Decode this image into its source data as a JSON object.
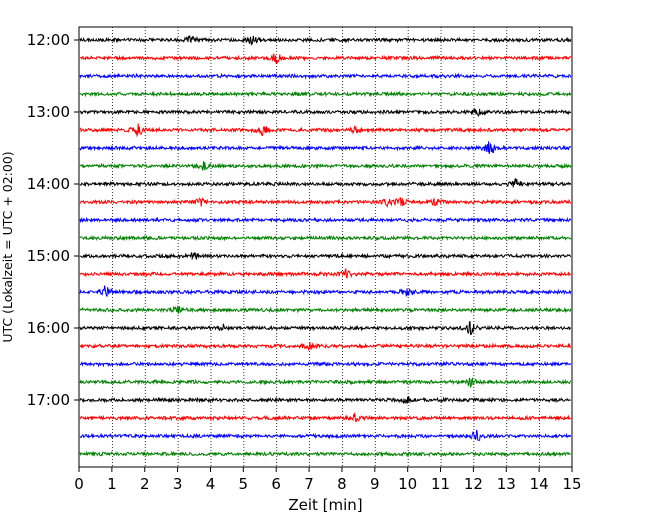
{
  "chart_data": {
    "type": "line",
    "title": "",
    "xlabel": "Zeit  [min]",
    "ylabel": "UTC (Lokalzeit = UTC + 02:00)",
    "xlim": [
      0,
      15
    ],
    "x_ticks": [
      "0",
      "1",
      "2",
      "3",
      "4",
      "5",
      "6",
      "7",
      "8",
      "9",
      "10",
      "11",
      "12",
      "13",
      "14",
      "15"
    ],
    "y_ticks": [
      "12:00",
      "13:00",
      "14:00",
      "15:00",
      "16:00",
      "17:00"
    ],
    "grid": "vertical dotted",
    "trace_interval_minutes": 15,
    "trace_colors": [
      "#000000",
      "#ff0000",
      "#0000ff",
      "#008000"
    ],
    "series": [
      {
        "start": "12:00",
        "color": "#000000",
        "events": [
          [
            3.4,
            4
          ],
          [
            5.3,
            5
          ]
        ]
      },
      {
        "start": "12:15",
        "color": "#ff0000",
        "events": [
          [
            6.0,
            6
          ]
        ]
      },
      {
        "start": "12:30",
        "color": "#0000ff",
        "events": []
      },
      {
        "start": "12:45",
        "color": "#008000",
        "events": []
      },
      {
        "start": "13:00",
        "color": "#000000",
        "events": [
          [
            12.1,
            6
          ]
        ]
      },
      {
        "start": "13:15",
        "color": "#ff0000",
        "events": [
          [
            1.8,
            6
          ],
          [
            5.6,
            7
          ],
          [
            8.4,
            3
          ]
        ]
      },
      {
        "start": "13:30",
        "color": "#0000ff",
        "events": [
          [
            12.5,
            8
          ]
        ]
      },
      {
        "start": "13:45",
        "color": "#008000",
        "events": [
          [
            3.8,
            4
          ]
        ]
      },
      {
        "start": "14:00",
        "color": "#000000",
        "events": [
          [
            13.3,
            5
          ]
        ]
      },
      {
        "start": "14:15",
        "color": "#ff0000",
        "events": [
          [
            3.7,
            5
          ],
          [
            9.4,
            4
          ],
          [
            9.8,
            5
          ],
          [
            10.8,
            4
          ]
        ]
      },
      {
        "start": "14:30",
        "color": "#0000ff",
        "events": []
      },
      {
        "start": "14:45",
        "color": "#008000",
        "events": []
      },
      {
        "start": "15:00",
        "color": "#000000",
        "events": [
          [
            3.5,
            4
          ]
        ]
      },
      {
        "start": "15:15",
        "color": "#ff0000",
        "events": [
          [
            8.1,
            4
          ]
        ]
      },
      {
        "start": "15:30",
        "color": "#0000ff",
        "events": [
          [
            0.8,
            6
          ],
          [
            10.0,
            6
          ]
        ]
      },
      {
        "start": "15:45",
        "color": "#008000",
        "events": [
          [
            3.0,
            4
          ]
        ]
      },
      {
        "start": "16:00",
        "color": "#000000",
        "events": [
          [
            11.9,
            8
          ],
          [
            4.4,
            3
          ]
        ]
      },
      {
        "start": "16:15",
        "color": "#ff0000",
        "events": [
          [
            7.0,
            4
          ]
        ]
      },
      {
        "start": "16:30",
        "color": "#0000ff",
        "events": []
      },
      {
        "start": "16:45",
        "color": "#008000",
        "events": [
          [
            11.9,
            5
          ]
        ]
      },
      {
        "start": "17:00",
        "color": "#000000",
        "events": [
          [
            10.0,
            3
          ]
        ]
      },
      {
        "start": "17:15",
        "color": "#ff0000",
        "events": [
          [
            8.4,
            4
          ]
        ]
      },
      {
        "start": "17:30",
        "color": "#0000ff",
        "events": [
          [
            12.1,
            6
          ]
        ]
      },
      {
        "start": "17:45",
        "color": "#008000",
        "events": []
      }
    ]
  }
}
